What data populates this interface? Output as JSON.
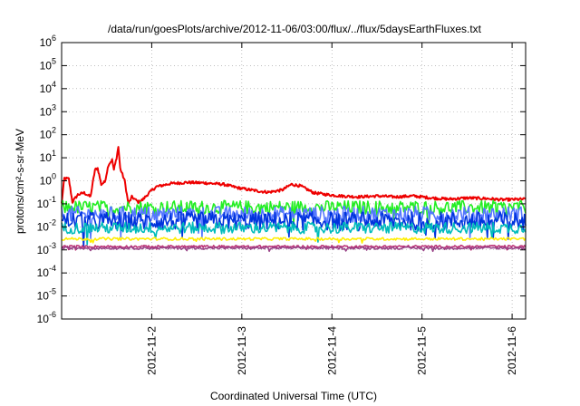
{
  "chart_data": {
    "type": "line",
    "title": "/data/run/goesPlots/archive/2012-11-06/03:00/flux/../flux/5daysEarthFluxes.txt",
    "xlabel": "Coordinated Universal Time (UTC)",
    "ylabel": "protons/cm²-s-sr-MeV",
    "yscale": "log",
    "ylim_exp": [
      -6,
      6
    ],
    "y_ticks": [
      {
        "base": "10",
        "exp": "-6"
      },
      {
        "base": "10",
        "exp": "-5"
      },
      {
        "base": "10",
        "exp": "-4"
      },
      {
        "base": "10",
        "exp": "-3"
      },
      {
        "base": "10",
        "exp": "-2"
      },
      {
        "base": "10",
        "exp": "-1"
      },
      {
        "base": "10",
        "exp": "0"
      },
      {
        "base": "10",
        "exp": "1"
      },
      {
        "base": "10",
        "exp": "2"
      },
      {
        "base": "10",
        "exp": "3"
      },
      {
        "base": "10",
        "exp": "4"
      },
      {
        "base": "10",
        "exp": "5"
      },
      {
        "base": "10",
        "exp": "6"
      }
    ],
    "xlim_days": [
      1.0,
      6.15
    ],
    "x_ticks": [
      {
        "label": "2012-11-2",
        "day": 2
      },
      {
        "label": "2012-11-3",
        "day": 3
      },
      {
        "label": "2012-11-4",
        "day": 4
      },
      {
        "label": "2012-11-5",
        "day": 5
      },
      {
        "label": "2012-11-6",
        "day": 6
      }
    ],
    "grid": true,
    "series": [
      {
        "color": "#ee0000",
        "points": [
          [
            1.0,
            0.1
          ],
          [
            1.03,
            1.3
          ],
          [
            1.08,
            1.2
          ],
          [
            1.12,
            0.12
          ],
          [
            1.18,
            0.25
          ],
          [
            1.25,
            0.3
          ],
          [
            1.32,
            0.2
          ],
          [
            1.37,
            3.0
          ],
          [
            1.4,
            3.5
          ],
          [
            1.44,
            0.7
          ],
          [
            1.48,
            0.9
          ],
          [
            1.52,
            5.0
          ],
          [
            1.56,
            8.0
          ],
          [
            1.58,
            3.0
          ],
          [
            1.61,
            10.0
          ],
          [
            1.63,
            30.0
          ],
          [
            1.65,
            3.5
          ],
          [
            1.7,
            1.0
          ],
          [
            1.74,
            0.1
          ],
          [
            1.78,
            0.2
          ],
          [
            1.85,
            0.12
          ],
          [
            1.9,
            0.15
          ],
          [
            1.97,
            0.3
          ],
          [
            2.05,
            0.55
          ],
          [
            2.2,
            0.75
          ],
          [
            2.4,
            0.85
          ],
          [
            2.6,
            0.8
          ],
          [
            2.8,
            0.7
          ],
          [
            2.95,
            0.5
          ],
          [
            3.1,
            0.4
          ],
          [
            3.2,
            0.35
          ],
          [
            3.3,
            0.32
          ],
          [
            3.45,
            0.4
          ],
          [
            3.55,
            0.7
          ],
          [
            3.65,
            0.6
          ],
          [
            3.8,
            0.3
          ],
          [
            3.95,
            0.25
          ],
          [
            4.1,
            0.22
          ],
          [
            4.3,
            0.2
          ],
          [
            4.5,
            0.22
          ],
          [
            4.7,
            0.2
          ],
          [
            4.9,
            0.22
          ],
          [
            5.1,
            0.18
          ],
          [
            5.3,
            0.16
          ],
          [
            5.5,
            0.18
          ],
          [
            5.7,
            0.17
          ],
          [
            5.9,
            0.15
          ],
          [
            6.15,
            0.16
          ]
        ]
      },
      {
        "color": "#22ee22",
        "level": 0.07,
        "amp": 0.3
      },
      {
        "color": "#5577ff",
        "level": 0.035,
        "amp": 0.35
      },
      {
        "color": "#0033dd",
        "level": 0.018,
        "amp": 0.4
      },
      {
        "color": "#00bbbb",
        "level": 0.009,
        "amp": 0.25
      },
      {
        "color": "#ffee00",
        "level": 0.003,
        "amp": 0.06
      },
      {
        "color": "#bb3377",
        "level": 0.0014,
        "amp": 0.05
      },
      {
        "color": "#994488",
        "level": 0.0012,
        "amp": 0.05
      }
    ]
  }
}
